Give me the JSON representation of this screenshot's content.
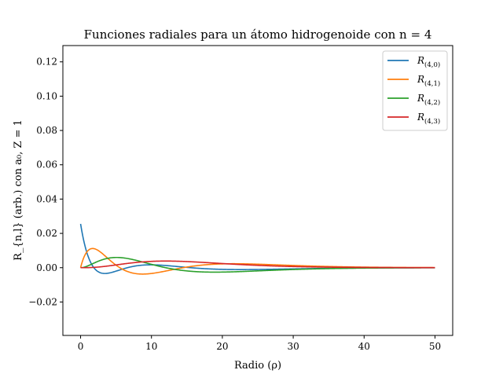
{
  "chart_data": {
    "type": "line",
    "title": "Funciones radiales para un átomo hidrogenoide con n = 4",
    "xlabel": "Radio (ρ)",
    "ylabel": "R_{n,l} (arb.) con a₀, Z = 1",
    "xlim": [
      -2.5,
      52.5
    ],
    "ylim": [
      -0.0395,
      0.1295
    ],
    "xticks": [
      0,
      10,
      20,
      30,
      40,
      50
    ],
    "xtick_labels": [
      "0",
      "10",
      "20",
      "30",
      "40",
      "50"
    ],
    "yticks": [
      -0.02,
      0.0,
      0.02,
      0.04,
      0.06,
      0.08,
      0.1,
      0.12
    ],
    "ytick_labels": [
      "−0.02",
      "0.00",
      "0.02",
      "0.04",
      "0.06",
      "0.08",
      "0.10",
      "0.12"
    ],
    "grid": false,
    "legend_position": "top-right",
    "x_range": [
      0,
      50
    ],
    "series": [
      {
        "name": "R(4,0)",
        "l": 0,
        "color": "#1f77b4",
        "label_main": "R",
        "label_sub": "(4,0)"
      },
      {
        "name": "R(4,1)",
        "l": 1,
        "color": "#ff7f0e",
        "label_main": "R",
        "label_sub": "(4,1)"
      },
      {
        "name": "R(4,2)",
        "l": 2,
        "color": "#2ca02c",
        "label_main": "R",
        "label_sub": "(4,2)"
      },
      {
        "name": "R(4,3)",
        "l": 3,
        "color": "#d62728",
        "label_main": "R",
        "label_sub": "(4,3)"
      }
    ]
  }
}
